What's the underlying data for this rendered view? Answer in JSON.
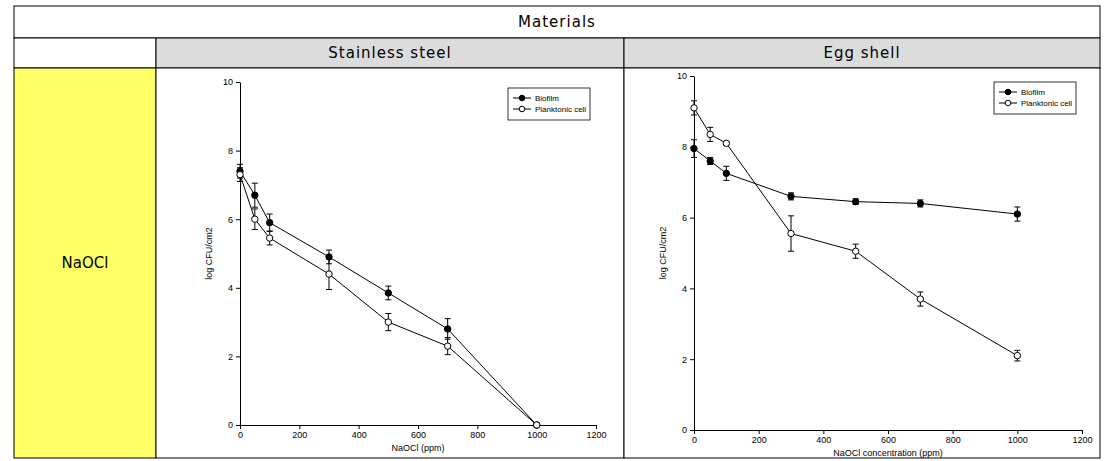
{
  "table": {
    "header": "Materials",
    "columns": [
      "Stainless steel",
      "Egg shell"
    ],
    "row_label": "NaOCl"
  },
  "chart_data": [
    {
      "type": "line",
      "x_label": "NaOCl (ppm)",
      "y_label": "log CFU/cm2",
      "x": [
        0,
        50,
        100,
        300,
        500,
        700,
        1000
      ],
      "xlim": [
        0,
        1200
      ],
      "xticks": [
        0,
        200,
        400,
        600,
        800,
        1000,
        1200
      ],
      "ylim": [
        0,
        10
      ],
      "yticks": [
        0,
        2,
        4,
        6,
        8,
        10
      ],
      "grid": false,
      "legend": "upper right",
      "series": [
        {
          "name": "Biofilm",
          "color": "#000000",
          "marker": "circle",
          "values": [
            7.4,
            6.7,
            5.9,
            4.9,
            3.85,
            2.8,
            0
          ],
          "errors": [
            0.2,
            0.35,
            0.25,
            0.2,
            0.2,
            0.3,
            0
          ]
        },
        {
          "name": "Planktonic cell",
          "color": "#000000",
          "marker": "circle-open",
          "values": [
            7.3,
            6.0,
            5.45,
            4.4,
            3.0,
            2.3,
            0
          ],
          "errors": [
            0.2,
            0.3,
            0.2,
            0.45,
            0.25,
            0.25,
            0
          ]
        }
      ]
    },
    {
      "type": "line",
      "x_label": "NaOCl concentration (ppm)",
      "y_label": "log CFU/cm2",
      "x": [
        0,
        50,
        100,
        300,
        500,
        700,
        1000
      ],
      "xlim": [
        0,
        1200
      ],
      "xticks": [
        0,
        200,
        400,
        600,
        800,
        1000,
        1200
      ],
      "ylim": [
        0,
        10
      ],
      "yticks": [
        0,
        2,
        4,
        6,
        8,
        10
      ],
      "grid": false,
      "legend": "upper right",
      "series": [
        {
          "name": "Biofilm",
          "color": "#000000",
          "marker": "circle",
          "values": [
            7.95,
            7.6,
            7.25,
            6.6,
            6.45,
            6.4,
            6.1
          ],
          "errors": [
            0.25,
            0.1,
            0.2,
            0.1,
            0.08,
            0.1,
            0.2
          ]
        },
        {
          "name": "Planktonic cell",
          "color": "#000000",
          "marker": "circle-open",
          "values": [
            9.1,
            8.35,
            8.1,
            5.55,
            5.05,
            3.7,
            2.1
          ],
          "errors": [
            0.2,
            0.2,
            0.05,
            0.5,
            0.2,
            0.2,
            0.15
          ]
        }
      ]
    }
  ]
}
